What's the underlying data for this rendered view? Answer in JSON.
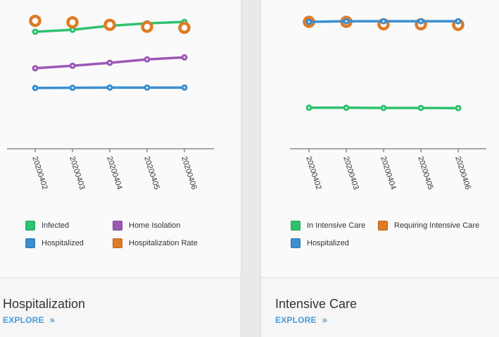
{
  "colors": {
    "green": "#2ec26f",
    "purple": "#9b59b6",
    "blue": "#3a8fd0",
    "orange": "#de7b26",
    "accent": "#4a9bd8"
  },
  "cards": [
    {
      "title": "Hospitalization",
      "explore_label": "EXPLORE",
      "explore_icon": "double-chevron-right-icon",
      "legend": [
        {
          "label": "Infected",
          "color": "#2ec26f"
        },
        {
          "label": "Home Isolation",
          "color": "#9b59b6"
        },
        {
          "label": "Hospitalized",
          "color": "#3a8fd0"
        },
        {
          "label": "Hospitalization Rate",
          "color": "#de7b26"
        }
      ]
    },
    {
      "title": "Intensive Care",
      "explore_label": "EXPLORE",
      "explore_icon": "double-chevron-right-icon",
      "legend": [
        {
          "label": "In Intensive Care",
          "color": "#2ec26f"
        },
        {
          "label": "Requiring Intensive Care",
          "color": "#de7b26"
        },
        {
          "label": "Hospitalized",
          "color": "#3a8fd0"
        }
      ]
    }
  ],
  "chart_data": [
    {
      "type": "line",
      "categories": [
        "20200402",
        "20200403",
        "20200404",
        "20200405",
        "20200406"
      ],
      "ylim": [
        0,
        100
      ],
      "grid": false,
      "legend_position": "bottom",
      "series": [
        {
          "name": "Infected",
          "color": "#2ec26f",
          "values": [
            90,
            92,
            96,
            98.5,
            100
          ]
        },
        {
          "name": "Home Isolation",
          "color": "#9b59b6",
          "values": [
            53,
            55.5,
            58.5,
            62,
            64
          ]
        },
        {
          "name": "Hospitalized",
          "color": "#3a8fd0",
          "values": [
            33,
            33.2,
            33.4,
            33.4,
            33.4
          ]
        },
        {
          "name": "Hospitalization Rate",
          "color": "#de7b26",
          "values": [
            101,
            99.5,
            97,
            95,
            94
          ],
          "marker": "ring"
        }
      ]
    },
    {
      "type": "line",
      "categories": [
        "20200402",
        "20200403",
        "20200404",
        "20200405",
        "20200406"
      ],
      "ylim": [
        0,
        100
      ],
      "grid": false,
      "legend_position": "bottom",
      "series": [
        {
          "name": "In Intensive Care",
          "color": "#2ec26f",
          "values": [
            13,
            13,
            12.8,
            12.8,
            12.6
          ]
        },
        {
          "name": "Requiring Intensive Care",
          "color": "#de7b26",
          "values": [
            100,
            100,
            97.5,
            97.5,
            97
          ],
          "marker": "ring"
        },
        {
          "name": "Hospitalized",
          "color": "#3a8fd0",
          "values": [
            100,
            100.6,
            100.6,
            100.6,
            100.6
          ]
        }
      ]
    }
  ]
}
